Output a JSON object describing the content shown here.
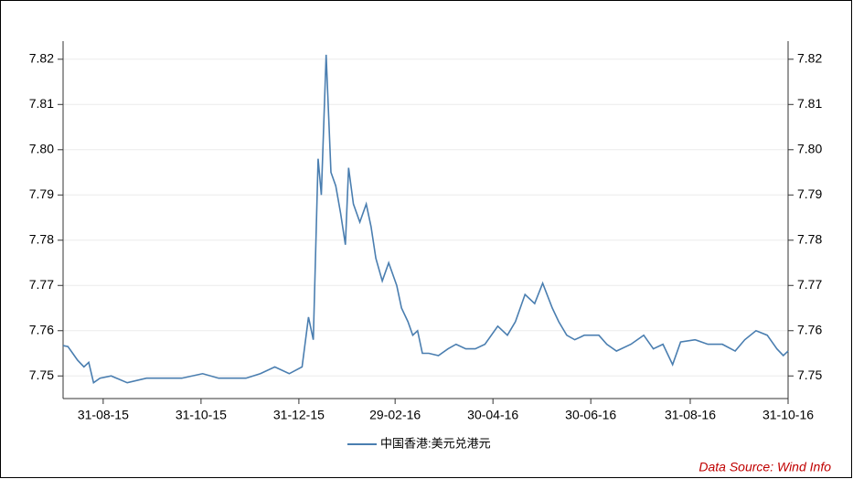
{
  "chart_data": {
    "type": "line",
    "x": [
      "2015-08-06",
      "2015-08-09",
      "2015-08-12",
      "2015-08-15",
      "2015-08-19",
      "2015-08-22",
      "2015-08-25",
      "2015-08-29",
      "2015-09-05",
      "2015-09-15",
      "2015-09-27",
      "2015-10-19",
      "2015-11-01",
      "2015-11-11",
      "2015-11-28",
      "2015-12-07",
      "2015-12-16",
      "2015-12-25",
      "2016-01-02",
      "2016-01-06",
      "2016-01-09",
      "2016-01-12",
      "2016-01-14",
      "2016-01-17",
      "2016-01-20",
      "2016-01-23",
      "2016-01-26",
      "2016-01-29",
      "2016-01-31",
      "2016-02-03",
      "2016-02-07",
      "2016-02-11",
      "2016-02-14",
      "2016-02-17",
      "2016-02-21",
      "2016-02-25",
      "2016-03-01",
      "2016-03-04",
      "2016-03-08",
      "2016-03-11",
      "2016-03-14",
      "2016-03-17",
      "2016-03-21",
      "2016-03-27",
      "2016-04-02",
      "2016-04-07",
      "2016-04-13",
      "2016-04-19",
      "2016-04-25",
      "2016-05-03",
      "2016-05-09",
      "2016-05-14",
      "2016-05-20",
      "2016-05-26",
      "2016-05-31",
      "2016-06-06",
      "2016-06-10",
      "2016-06-15",
      "2016-06-20",
      "2016-06-26",
      "2016-07-05",
      "2016-07-10",
      "2016-07-16",
      "2016-07-25",
      "2016-08-02",
      "2016-08-08",
      "2016-08-14",
      "2016-08-20",
      "2016-08-25",
      "2016-09-03",
      "2016-09-11",
      "2016-09-20",
      "2016-09-28",
      "2016-10-04",
      "2016-10-11",
      "2016-10-18",
      "2016-10-24",
      "2016-10-28",
      "2016-10-31"
    ],
    "series": [
      {
        "name": "中国香港:美元兑港元",
        "color": "#4a7eb0",
        "values": [
          7.7567,
          7.7565,
          7.755,
          7.7535,
          7.752,
          7.753,
          7.7485,
          7.7495,
          7.75,
          7.7485,
          7.7495,
          7.7495,
          7.7505,
          7.7495,
          7.7495,
          7.7505,
          7.752,
          7.7505,
          7.752,
          7.763,
          7.758,
          7.798,
          7.79,
          7.821,
          7.795,
          7.792,
          7.786,
          7.779,
          7.796,
          7.788,
          7.784,
          7.788,
          7.783,
          7.776,
          7.771,
          7.775,
          7.77,
          7.765,
          7.762,
          7.759,
          7.76,
          7.755,
          7.755,
          7.7545,
          7.756,
          7.757,
          7.756,
          7.756,
          7.757,
          7.761,
          7.759,
          7.762,
          7.768,
          7.766,
          7.7705,
          7.765,
          7.762,
          7.759,
          7.758,
          7.759,
          7.759,
          7.757,
          7.7555,
          7.757,
          7.759,
          7.756,
          7.757,
          7.7525,
          7.7575,
          7.758,
          7.757,
          7.757,
          7.7555,
          7.758,
          7.76,
          7.759,
          7.756,
          7.7545,
          7.7555
        ]
      }
    ],
    "xlim": [
      "2015-08-06",
      "2016-10-31"
    ],
    "xticks": [
      {
        "value": "2015-08-31",
        "label": "31-08-15"
      },
      {
        "value": "2015-10-31",
        "label": "31-10-15"
      },
      {
        "value": "2015-12-31",
        "label": "31-12-15"
      },
      {
        "value": "2016-02-29",
        "label": "29-02-16"
      },
      {
        "value": "2016-04-30",
        "label": "30-04-16"
      },
      {
        "value": "2016-06-30",
        "label": "30-06-16"
      },
      {
        "value": "2016-08-31",
        "label": "31-08-16"
      },
      {
        "value": "2016-10-31",
        "label": "31-10-16"
      }
    ],
    "ylim": [
      7.745,
      7.824
    ],
    "yticks": [
      7.75,
      7.76,
      7.77,
      7.78,
      7.79,
      {
        "value": 7.8,
        "label": "7.80"
      },
      7.81,
      7.82
    ],
    "y2lim": [
      7.745,
      7.824
    ],
    "y2ticks": [
      7.75,
      7.76,
      7.77,
      7.78,
      7.79,
      {
        "value": 7.8,
        "label": "7.80"
      },
      7.81,
      7.82
    ],
    "grid": true,
    "annotation": "Data Source: Wind Info"
  }
}
